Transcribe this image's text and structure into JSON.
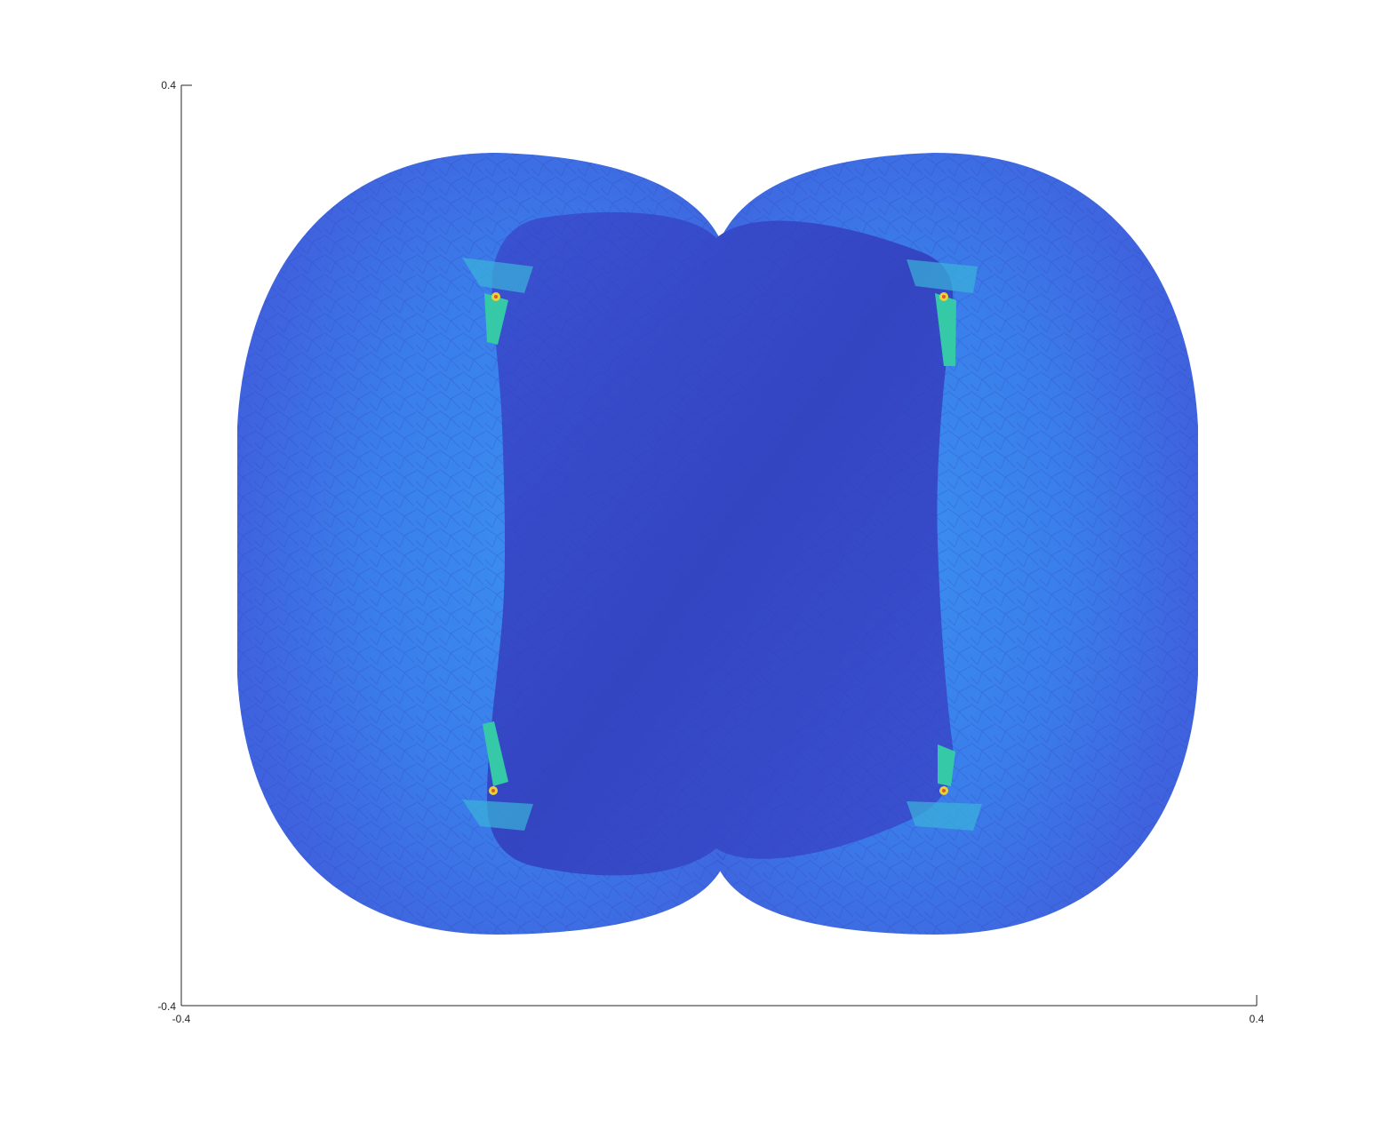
{
  "chart_data": {
    "type": "heatmap",
    "title": "",
    "xlabel": "",
    "ylabel": "",
    "xlim": [
      -0.4,
      0.4
    ],
    "ylim": [
      -0.4,
      0.4
    ],
    "x_ticks": [
      -0.4,
      0.4
    ],
    "y_ticks": [
      -0.4,
      0.4
    ],
    "x_tick_labels": [
      "-0.4",
      "0.4"
    ],
    "y_tick_labels": [
      "-0.4",
      "0.4"
    ],
    "grid": false,
    "legend": "none",
    "colormap": "parula",
    "colors": {
      "outer_shell": "#3f6ae6",
      "outer_shell_light": "#3a8ef0",
      "inner_body": "#3548c8",
      "hotspot_high": "#35c9a8",
      "hotspot_peak": "#e8d23a"
    }
  }
}
